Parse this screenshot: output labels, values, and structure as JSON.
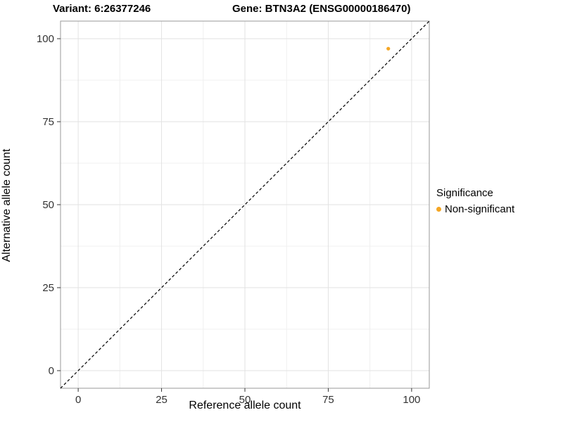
{
  "header": {
    "variant_label": "Variant: 6:26377246",
    "gene_label": "Gene: BTN3A2 (ENSG00000186470)"
  },
  "chart_data": {
    "type": "scatter",
    "title": "Variant: 6:26377246 / Gene: BTN3A2 (ENSG00000186470)",
    "xlabel": "Reference allele count",
    "ylabel": "Alternative allele count",
    "xlim": [
      -5.3,
      105.3
    ],
    "ylim": [
      -5.3,
      105.3
    ],
    "xticks": [
      0,
      25,
      50,
      75,
      100
    ],
    "yticks": [
      0,
      25,
      50,
      75,
      100
    ],
    "grid": true,
    "reference_line": {
      "type": "identity",
      "description": "y = x dashed diagonal",
      "style": "dashed",
      "color": "#000000"
    },
    "series": [
      {
        "name": "Non-significant",
        "color": "#F5A623",
        "points": [
          {
            "x": 93,
            "y": 97
          }
        ]
      }
    ],
    "legend": {
      "title": "Significance",
      "position": "right",
      "entries": [
        {
          "label": "Non-significant",
          "color": "#F5A623"
        }
      ]
    },
    "colors": {
      "grid_major": "#E2E2E2",
      "grid_minor": "#F0F0F0",
      "panel_border": "#999999",
      "tick": "#333333",
      "tick_label": "#333333"
    }
  }
}
